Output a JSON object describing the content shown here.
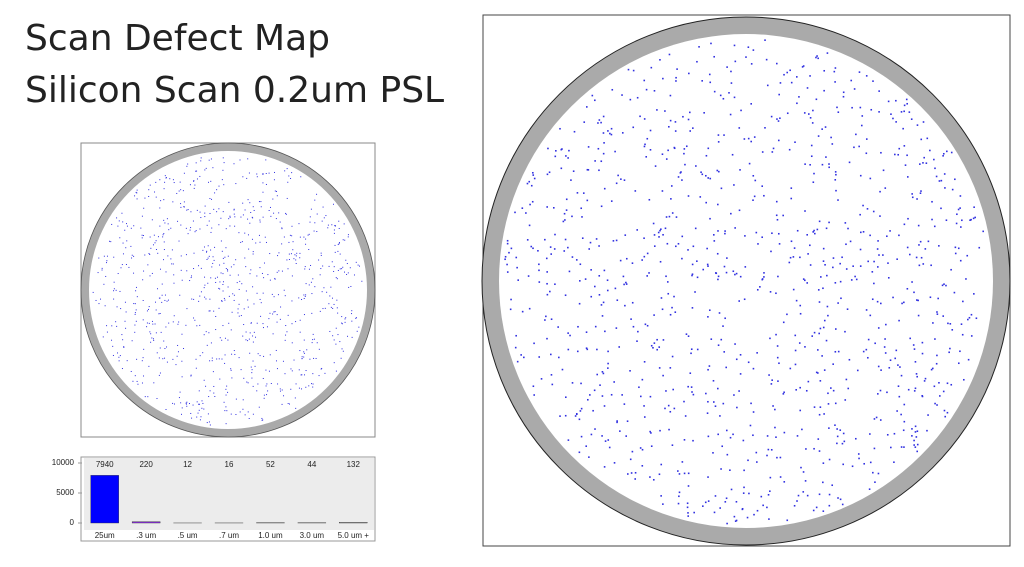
{
  "chart_data": {
    "type": "bar",
    "title": "Scan Defect Map",
    "subtitle": "Silicon Scan 0.2um PSL",
    "categories": [
      "25um",
      ".3 um",
      ".5 um",
      ".7 um",
      "1.0 um",
      "3.0 um",
      "5.0 um +"
    ],
    "values": [
      7940,
      220,
      12,
      16,
      52,
      44,
      132
    ],
    "colors": [
      "#0000ff",
      "#8a2be2",
      "#c8c8c8",
      "#c8c8c8",
      "#c8c8c8",
      "#c8c8c8",
      "#c8c8c8"
    ],
    "ylim": [
      0,
      10000
    ],
    "yticks": [
      0,
      5000,
      10000
    ]
  }
}
